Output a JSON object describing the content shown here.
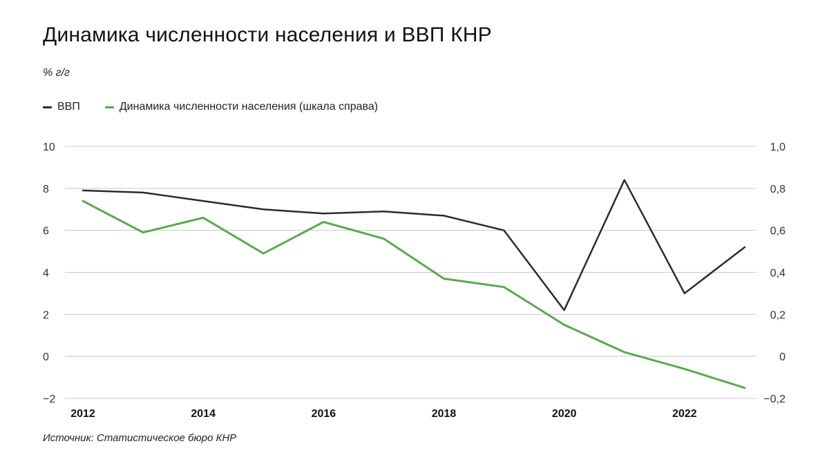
{
  "header": {
    "title": "Динамика численности населения и ВВП КНР",
    "unit": "% г/г"
  },
  "source": "Источник: Статистическое бюро КНР",
  "colors": {
    "gdp": "#2b2b2b",
    "population": "#5aa850",
    "grid": "#c8c8c8"
  },
  "chart_data": {
    "type": "line",
    "title": "Динамика численности населения и ВВП КНР",
    "ylabel": "% г/г",
    "x": [
      2012,
      2013,
      2014,
      2015,
      2016,
      2017,
      2018,
      2019,
      2020,
      2021,
      2022,
      2023
    ],
    "x_ticks": [
      "2012",
      "2014",
      "2016",
      "2018",
      "2020",
      "2022"
    ],
    "y_left_ticks": [
      "10",
      "8",
      "6",
      "4",
      "2",
      "0",
      "−2"
    ],
    "y_right_ticks": [
      "1,0",
      "0,8",
      "0,6",
      "0,4",
      "0,2",
      "0",
      "−0,2"
    ],
    "ylim_left": [
      -2,
      10
    ],
    "ylim_right": [
      -0.2,
      1.0
    ],
    "grid": true,
    "legend_position": "top-left",
    "series": [
      {
        "name": "ВВП",
        "axis": "left",
        "values": [
          7.9,
          7.8,
          7.4,
          7.0,
          6.8,
          6.9,
          6.7,
          6.0,
          2.2,
          8.4,
          3.0,
          5.2
        ]
      },
      {
        "name": "Динамика численности населения (шкала справа)",
        "axis": "right",
        "values": [
          0.74,
          0.59,
          0.66,
          0.49,
          0.64,
          0.56,
          0.37,
          0.33,
          0.15,
          0.02,
          -0.06,
          -0.15
        ]
      }
    ]
  }
}
